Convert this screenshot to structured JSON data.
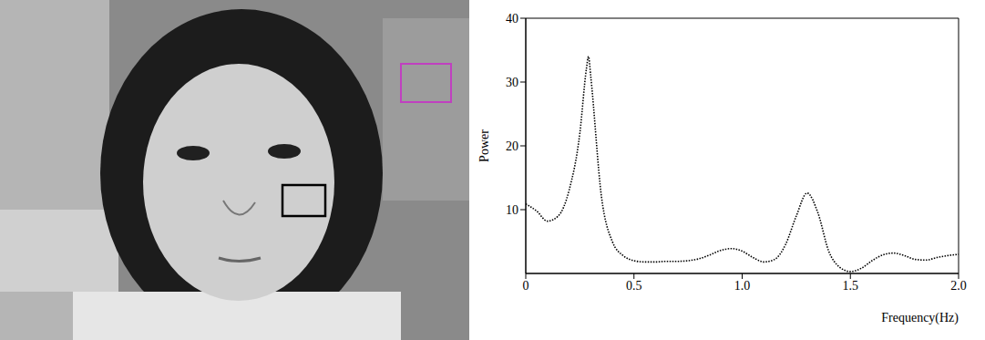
{
  "chart_data": {
    "type": "line",
    "x_label": "Frequency(Hz)",
    "y_label": "Power",
    "x": [
      0,
      0.05,
      0.1,
      0.15,
      0.2,
      0.25,
      0.28,
      0.29,
      0.3,
      0.35,
      0.4,
      0.45,
      0.5,
      0.55,
      0.6,
      0.65,
      0.7,
      0.75,
      0.8,
      0.85,
      0.9,
      0.95,
      1.0,
      1.05,
      1.1,
      1.15,
      1.2,
      1.25,
      1.3,
      1.35,
      1.4,
      1.45,
      1.5,
      1.55,
      1.6,
      1.65,
      1.7,
      1.75,
      1.8,
      1.85,
      1.9,
      1.95,
      2.0
    ],
    "values": [
      10.9,
      9.8,
      8.2,
      9.0,
      13,
      22,
      32,
      34,
      31,
      12,
      5,
      2.8,
      2,
      1.8,
      1.8,
      1.9,
      1.9,
      2,
      2.3,
      2.9,
      3.6,
      3.9,
      3.5,
      2.5,
      1.8,
      2.2,
      4.5,
      9,
      12.6,
      9.5,
      3.5,
      1,
      0.3,
      0.8,
      2,
      2.9,
      3.2,
      2.8,
      2.2,
      2.1,
      2.5,
      2.8,
      3.0
    ],
    "color": "#000000",
    "line_style": "dotted",
    "xlim": [
      0,
      2
    ],
    "xticks": [
      0,
      0.5,
      {
        "value": 1,
        "label": "1.0"
      },
      1.5,
      {
        "value": 2,
        "label": "2.0"
      }
    ],
    "ylim": [
      0,
      40
    ],
    "yticks": [
      10,
      20,
      30,
      40
    ]
  }
}
